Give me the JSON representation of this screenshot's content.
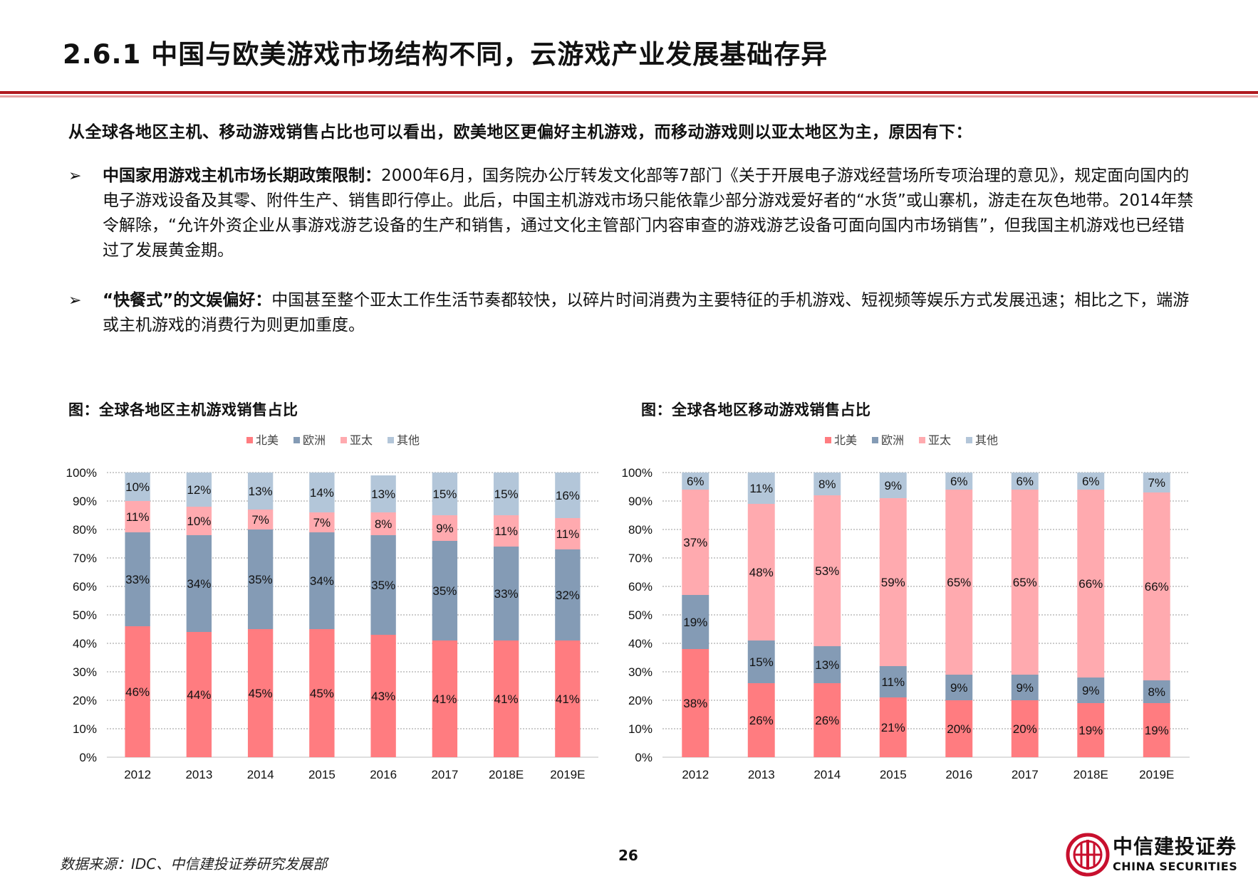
{
  "header": {
    "title": "2.6.1 中国与欧美游戏市场结构不同，云游戏产业发展基础存异"
  },
  "intro": "从全球各地区主机、移动游戏销售占比也可以看出，欧美地区更偏好主机游戏，而移动游戏则以亚太地区为主，原因有下：",
  "bullets": [
    {
      "marker": "➢",
      "head": "中国家用游戏主机市场长期政策限制：",
      "text": "2000年6月，国务院办公厅转发文化部等7部门《关于开展电子游戏经营场所专项治理的意见》，规定面向国内的电子游戏设备及其零、附件生产、销售即行停止。此后，中国主机游戏市场只能依靠少部分游戏爱好者的“水货”或山寨机，游走在灰色地带。2014年禁令解除，“允许外资企业从事游戏游艺设备的生产和销售，通过文化主管部门内容审查的游戏游艺设备可面向国内市场销售”，但我国主机游戏也已经错过了发展黄金期。"
    },
    {
      "marker": "➢",
      "head": "“快餐式”的文娱偏好：",
      "text": "中国甚至整个亚太工作生活节奏都较快，以碎片时间消费为主要特征的手机游戏、短视频等娱乐方式发展迅速；相比之下，端游或主机游戏的消费行为则更加重度。"
    }
  ],
  "colors": {
    "北美": "#ff7c80",
    "欧洲": "#849bb5",
    "亚太": "#ffaaaf",
    "其他": "#b3c6d9",
    "brand_red": "#c8102e"
  },
  "chart_data": [
    {
      "type": "bar",
      "stacked": true,
      "title": "图：全球各地区主机游戏销售占比",
      "categories": [
        "2012",
        "2013",
        "2014",
        "2015",
        "2016",
        "2017",
        "2018E",
        "2019E"
      ],
      "series": [
        {
          "name": "北美",
          "values": [
            46,
            44,
            45,
            45,
            43,
            41,
            41,
            41
          ]
        },
        {
          "name": "欧洲",
          "values": [
            33,
            34,
            35,
            34,
            35,
            35,
            33,
            32
          ]
        },
        {
          "name": "亚太",
          "values": [
            11,
            10,
            7,
            7,
            8,
            9,
            11,
            11
          ]
        },
        {
          "name": "其他",
          "values": [
            10,
            12,
            13,
            14,
            13,
            15,
            15,
            16
          ]
        }
      ],
      "yticks": [
        "0%",
        "10%",
        "20%",
        "30%",
        "40%",
        "50%",
        "60%",
        "70%",
        "80%",
        "90%",
        "100%"
      ],
      "ylim": [
        0,
        100
      ],
      "legend": "top-center"
    },
    {
      "type": "bar",
      "stacked": true,
      "title": "图：全球各地区移动游戏销售占比",
      "categories": [
        "2012",
        "2013",
        "2014",
        "2015",
        "2016",
        "2017",
        "2018E",
        "2019E"
      ],
      "series": [
        {
          "name": "北美",
          "values": [
            38,
            26,
            26,
            21,
            20,
            20,
            19,
            19
          ]
        },
        {
          "name": "欧洲",
          "values": [
            19,
            15,
            13,
            11,
            9,
            9,
            9,
            8
          ]
        },
        {
          "name": "亚太",
          "values": [
            37,
            48,
            53,
            59,
            65,
            65,
            66,
            66
          ]
        },
        {
          "name": "其他",
          "values": [
            6,
            11,
            8,
            9,
            6,
            6,
            6,
            7
          ]
        }
      ],
      "yticks": [
        "0%",
        "10%",
        "20%",
        "30%",
        "40%",
        "50%",
        "60%",
        "70%",
        "80%",
        "90%",
        "100%"
      ],
      "ylim": [
        0,
        100
      ],
      "legend": "top-center"
    }
  ],
  "footer": {
    "source": "数据来源：IDC、中信建投证券研究发展部",
    "page": "26",
    "logo_cn": "中信建投证券",
    "logo_en": "CHINA SECURITIES"
  }
}
